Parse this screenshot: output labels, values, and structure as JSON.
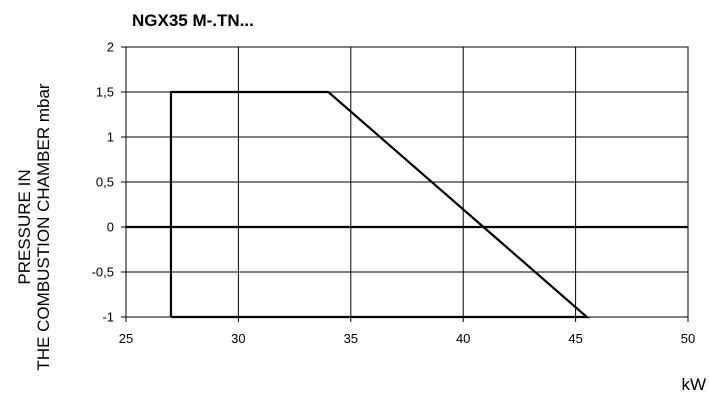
{
  "chart_data": {
    "type": "line",
    "title": "NGX35 M-.TN...",
    "xlabel": "kW",
    "ylabel_lines": [
      "PRESSURE IN",
      "THE COMBUSTION CHAMBER mbar"
    ],
    "xlim": [
      25,
      50
    ],
    "ylim": [
      -1,
      2
    ],
    "x_ticks": [
      25,
      30,
      35,
      40,
      45,
      50
    ],
    "x_tick_labels": [
      "25",
      "30",
      "35",
      "40",
      "45",
      "50"
    ],
    "y_ticks": [
      -1,
      -0.5,
      0,
      0.5,
      1,
      1.5,
      2
    ],
    "y_tick_labels": [
      "-1",
      "-0,5",
      "0",
      "0,5",
      "1",
      "1,5",
      "2"
    ],
    "grid": true,
    "legend": "none",
    "series": [
      {
        "points": [
          {
            "x": 27,
            "y": -1
          },
          {
            "x": 27,
            "y": 1.5
          },
          {
            "x": 34,
            "y": 1.5
          },
          {
            "x": 45.5,
            "y": -1
          },
          {
            "x": 27,
            "y": -1
          }
        ],
        "color": "#000000"
      }
    ],
    "zero_line": {
      "y": 0,
      "color": "#000000"
    }
  }
}
